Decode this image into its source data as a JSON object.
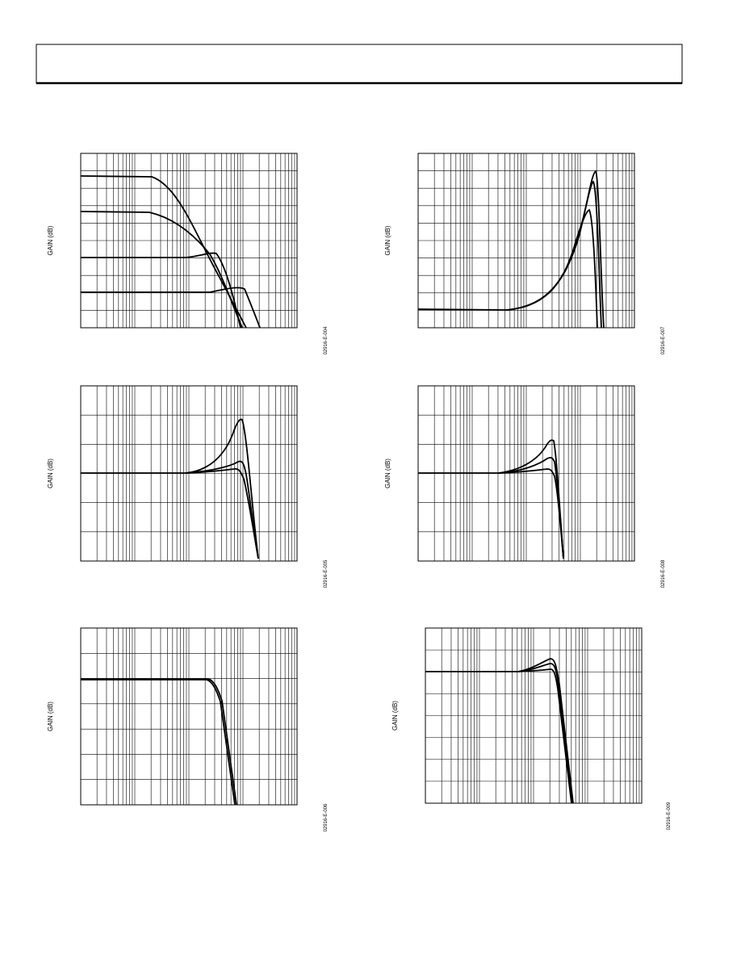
{
  "figures": [
    {
      "y_label": "GAIN (dB)",
      "code": "02916-E-004"
    },
    {
      "y_label": "GAIN (dB)",
      "code": "02916-E-007"
    },
    {
      "y_label": "GAIN (dB)",
      "code": "02916-E-005"
    },
    {
      "y_label": "GAIN (dB)",
      "code": "02916-E-008"
    },
    {
      "y_label": "GAIN (dB)",
      "code": "02916-E-006"
    },
    {
      "y_label": "GAIN (dB)",
      "code": "02916-E-009"
    }
  ]
}
